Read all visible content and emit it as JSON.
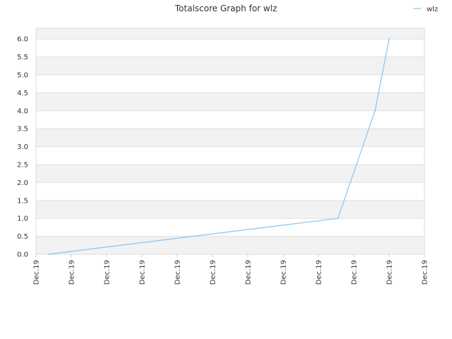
{
  "chart_data": {
    "type": "line",
    "title": "Totalscore Graph for wlz",
    "xlabel": "",
    "ylabel": "",
    "x": [
      "Dec.19",
      "Dec.19",
      "Dec.19",
      "Dec.19",
      "Dec.19",
      "Dec.19",
      "Dec.19",
      "Dec.19",
      "Dec.19",
      "Dec.19",
      "Dec.19",
      "Dec.19"
    ],
    "ylim": [
      0,
      6.3
    ],
    "yticks": [
      "0.0",
      "0.5",
      "1.0",
      "1.5",
      "2.0",
      "2.5",
      "3.0",
      "3.5",
      "4.0",
      "4.5",
      "5.0",
      "5.5",
      "6.0"
    ],
    "series": [
      {
        "name": "wlz",
        "color": "#88c4f0",
        "points": [
          {
            "x": 0.35,
            "y": 0.0
          },
          {
            "x": 8.55,
            "y": 1.0
          },
          {
            "x": 9.6,
            "y": 4.0
          },
          {
            "x": 10.0,
            "y": 6.0
          }
        ]
      }
    ],
    "grid": true,
    "band_colors": [
      "#f2f2f2",
      "#ffffff"
    ],
    "legend": "top-right"
  }
}
